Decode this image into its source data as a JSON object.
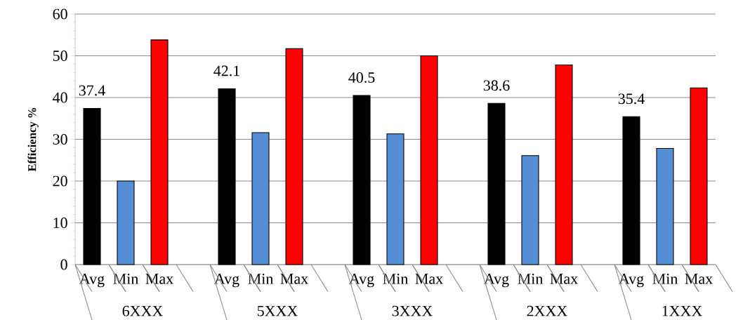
{
  "chart_data": {
    "type": "bar",
    "ylabel": "Efficiency %",
    "categories": [
      "Avg",
      "Min",
      "Max",
      null,
      "Avg",
      "Min",
      "Max",
      null,
      "Avg",
      "Min",
      "Max",
      null,
      "Avg",
      "Min",
      "Max",
      null,
      "Avg",
      "Min",
      "Max"
    ],
    "values": [
      37.4,
      20.0,
      53.8,
      null,
      42.1,
      31.6,
      51.7,
      null,
      40.5,
      31.3,
      50.0,
      null,
      38.6,
      26.1,
      47.8,
      null,
      35.4,
      27.8,
      42.3
    ],
    "colors": [
      "#000000",
      "#558ed5",
      "#ff0000",
      null,
      "#000000",
      "#558ed5",
      "#ff0000",
      null,
      "#000000",
      "#558ed5",
      "#ff0000",
      null,
      "#000000",
      "#558ed5",
      "#ff0000",
      null,
      "#000000",
      "#558ed5",
      "#ff0000"
    ],
    "value_labels": [
      "37.4",
      null,
      null,
      null,
      "42.1",
      null,
      null,
      null,
      "40.5",
      null,
      null,
      null,
      "38.6",
      null,
      null,
      null,
      "35.4",
      null,
      null
    ],
    "annotations": [
      "6XXX",
      "5XXX",
      "3XXX",
      "2XXX",
      "1XXX"
    ],
    "ylim": [
      0,
      60
    ],
    "yticks": [
      0,
      10,
      20,
      30,
      40,
      50,
      60
    ],
    "grid": "y"
  }
}
